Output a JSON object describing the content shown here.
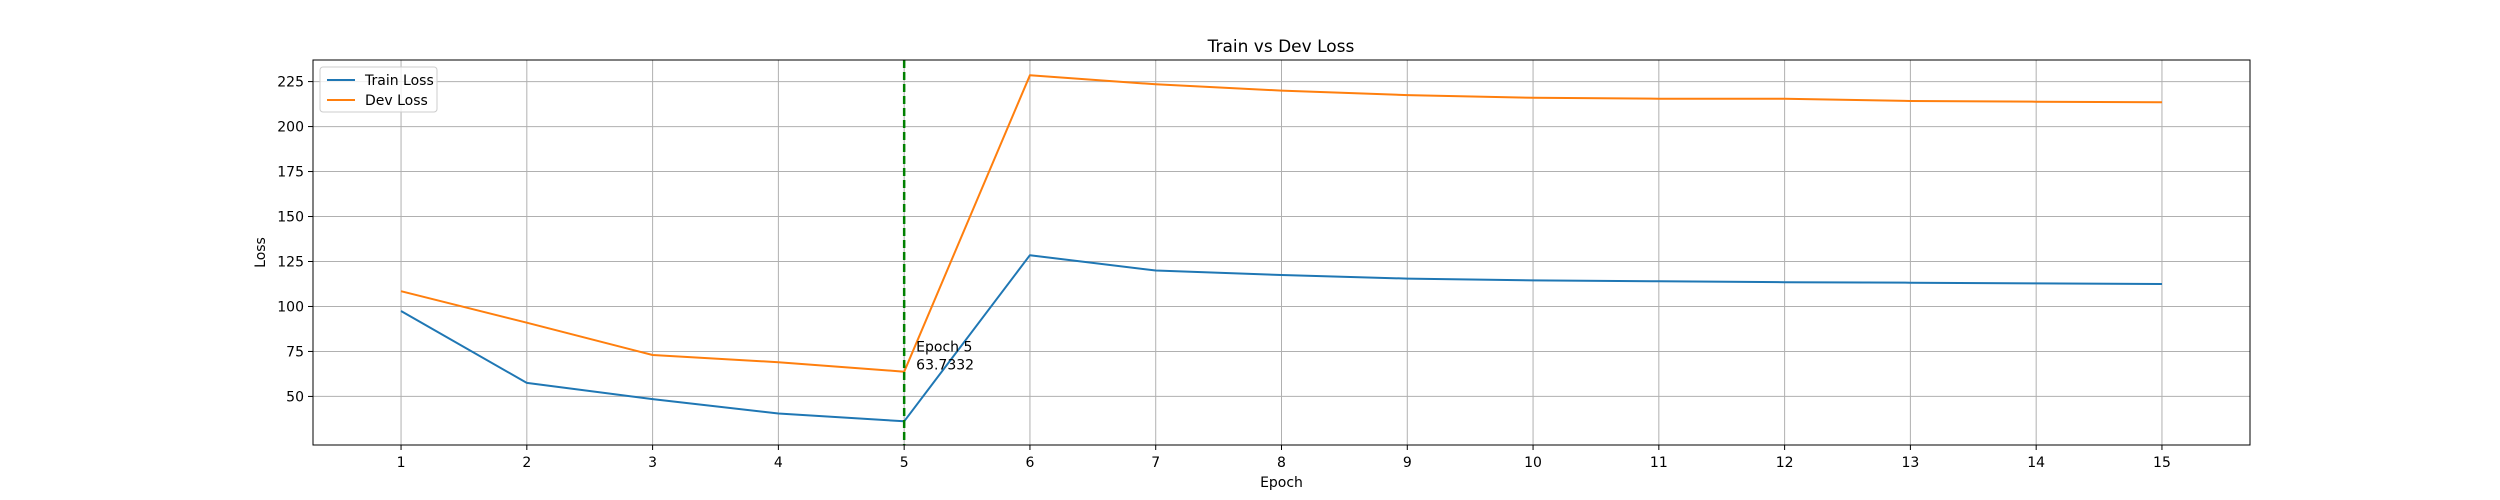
{
  "chart_data": {
    "type": "line",
    "title": "Train vs Dev Loss",
    "xlabel": "Epoch",
    "ylabel": "Loss",
    "x": [
      1,
      2,
      3,
      4,
      5,
      6,
      7,
      8,
      9,
      10,
      11,
      12,
      13,
      14,
      15
    ],
    "xlim": [
      0.3,
      15.7
    ],
    "ylim": [
      23,
      237
    ],
    "xticks": [
      1,
      2,
      3,
      4,
      5,
      6,
      7,
      8,
      9,
      10,
      11,
      12,
      13,
      14,
      15
    ],
    "yticks": [
      50,
      75,
      100,
      125,
      150,
      175,
      200,
      225
    ],
    "grid": true,
    "legend_position": "upper-left",
    "series": [
      {
        "name": "Train Loss",
        "color": "#1f77b4",
        "values": [
          97.5,
          57.5,
          48.5,
          40.5,
          36.2,
          128.5,
          120,
          117.5,
          115.5,
          114.5,
          114,
          113.5,
          113.2,
          112.8,
          112.5
        ]
      },
      {
        "name": "Dev Loss",
        "color": "#ff7f0e",
        "values": [
          108.5,
          91,
          73,
          69,
          63.7332,
          228.5,
          223.5,
          220,
          217.5,
          216,
          215.5,
          215.5,
          214.2,
          213.8,
          213.5
        ]
      }
    ],
    "marker_line": {
      "x": 5,
      "color": "#008000",
      "style": "dashed"
    },
    "annotation": {
      "x": 5,
      "y": 63.7332,
      "line1": "Epoch 5",
      "line2": "63.7332"
    }
  }
}
